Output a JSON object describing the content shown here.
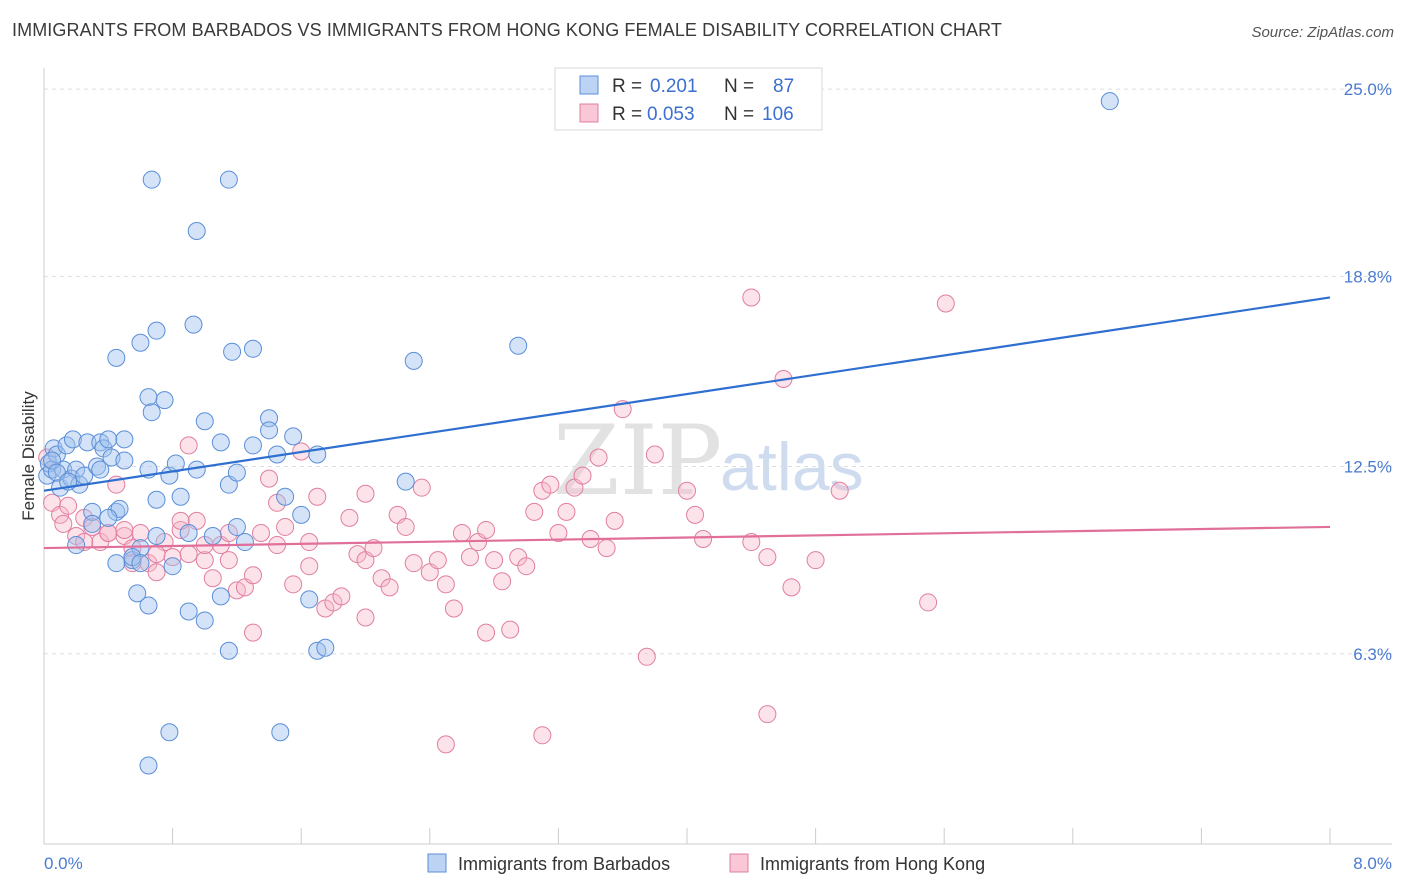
{
  "title": "IMMIGRANTS FROM BARBADOS VS IMMIGRANTS FROM HONG KONG FEMALE DISABILITY CORRELATION CHART",
  "source": "Source: ZipAtlas.com",
  "watermark": {
    "part1": "ZIP",
    "part2": "atlas"
  },
  "legend_top": {
    "rows": [
      {
        "r_label": "R =",
        "r_value": "0.201",
        "n_label": "N =",
        "n_value": "87",
        "color": "#a9c6f0",
        "edge": "#5b8fd8"
      },
      {
        "r_label": "R =",
        "r_value": "0.053",
        "n_label": "N =",
        "n_value": "106",
        "color": "#f7b6c8",
        "edge": "#e07fa0"
      }
    ]
  },
  "legend_bottom": [
    {
      "label": "Immigrants from Barbados",
      "color": "#a9c6f0"
    },
    {
      "label": "Immigrants from Hong Kong",
      "color": "#f7b6c8"
    }
  ],
  "chart_data": {
    "type": "scatter",
    "title": "IMMIGRANTS FROM BARBADOS VS IMMIGRANTS FROM HONG KONG FEMALE DISABILITY CORRELATION CHART",
    "xlabel": "",
    "ylabel": "Female Disability",
    "xlim": [
      0,
      8
    ],
    "ylim": [
      0,
      25.5
    ],
    "x_tick_labels": [
      "0.0%",
      "8.0%"
    ],
    "y_tick_labels": [
      "25.0%",
      "18.8%",
      "12.5%",
      "6.3%"
    ],
    "y_ticks": [
      25.0,
      18.8,
      12.5,
      6.3
    ],
    "grid": true,
    "colors": {
      "barbados": "#5b8fd8",
      "barbados_fill": "rgba(160,192,238,0.45)",
      "hongkong": "#e07fa0",
      "hongkong_fill": "rgba(247,182,200,0.40)",
      "trend_blue": "#2f6fd0",
      "trend_pink": "#e0709a"
    },
    "series": [
      {
        "name": "Immigrants from Barbados",
        "trend": [
          [
            0,
            11.7
          ],
          [
            8,
            18.1
          ]
        ],
        "points": [
          [
            0.02,
            12.2
          ],
          [
            0.03,
            12.6
          ],
          [
            0.05,
            12.4
          ],
          [
            0.06,
            13.1
          ],
          [
            0.08,
            12.9
          ],
          [
            0.1,
            11.8
          ],
          [
            0.12,
            12.4
          ],
          [
            0.14,
            13.2
          ],
          [
            0.17,
            12.1
          ],
          [
            0.18,
            13.4
          ],
          [
            0.2,
            12.4
          ],
          [
            0.22,
            11.9
          ],
          [
            0.25,
            12.2
          ],
          [
            0.27,
            13.3
          ],
          [
            0.3,
            11.0
          ],
          [
            0.33,
            12.5
          ],
          [
            0.35,
            13.3
          ],
          [
            0.37,
            13.1
          ],
          [
            0.4,
            13.4
          ],
          [
            0.42,
            12.8
          ],
          [
            0.45,
            11.0
          ],
          [
            0.47,
            11.1
          ],
          [
            0.5,
            12.7
          ],
          [
            0.55,
            9.4
          ],
          [
            0.58,
            8.3
          ],
          [
            0.6,
            9.8
          ],
          [
            0.65,
            12.4
          ],
          [
            0.7,
            11.4
          ],
          [
            0.75,
            14.7
          ],
          [
            0.78,
            12.2
          ],
          [
            0.82,
            12.6
          ],
          [
            0.85,
            11.5
          ],
          [
            0.9,
            10.3
          ],
          [
            0.95,
            12.4
          ],
          [
            1.0,
            14.0
          ],
          [
            1.05,
            10.2
          ],
          [
            1.1,
            13.3
          ],
          [
            1.15,
            11.9
          ],
          [
            1.2,
            10.5
          ],
          [
            1.25,
            10.0
          ],
          [
            1.3,
            16.4
          ],
          [
            1.4,
            14.1
          ],
          [
            1.45,
            12.9
          ],
          [
            1.5,
            11.5
          ],
          [
            1.55,
            13.5
          ],
          [
            1.6,
            10.9
          ],
          [
            1.65,
            8.1
          ],
          [
            1.7,
            12.9
          ],
          [
            0.05,
            12.7
          ],
          [
            0.08,
            12.3
          ],
          [
            0.15,
            12.0
          ],
          [
            0.2,
            9.9
          ],
          [
            0.3,
            10.6
          ],
          [
            0.35,
            12.4
          ],
          [
            0.4,
            10.8
          ],
          [
            0.45,
            9.3
          ],
          [
            0.5,
            13.4
          ],
          [
            0.55,
            9.5
          ],
          [
            0.6,
            9.3
          ],
          [
            0.65,
            7.9
          ],
          [
            0.7,
            10.2
          ],
          [
            0.8,
            9.2
          ],
          [
            0.9,
            7.7
          ],
          [
            1.0,
            7.4
          ],
          [
            1.1,
            8.2
          ],
          [
            1.15,
            6.4
          ],
          [
            1.2,
            12.3
          ],
          [
            1.3,
            13.2
          ],
          [
            1.4,
            13.7
          ],
          [
            1.7,
            6.4
          ],
          [
            1.75,
            6.5
          ],
          [
            2.25,
            12.0
          ],
          [
            2.95,
            16.5
          ],
          [
            0.45,
            16.1
          ],
          [
            0.6,
            16.6
          ],
          [
            0.7,
            17.0
          ],
          [
            0.93,
            17.2
          ],
          [
            1.17,
            16.3
          ],
          [
            2.3,
            16.0
          ],
          [
            0.65,
            14.8
          ],
          [
            0.67,
            14.3
          ],
          [
            0.95,
            20.3
          ],
          [
            0.67,
            22.0
          ],
          [
            1.15,
            22.0
          ],
          [
            0.78,
            3.7
          ],
          [
            1.47,
            3.7
          ],
          [
            0.65,
            2.6
          ],
          [
            6.63,
            24.6
          ]
        ]
      },
      {
        "name": "Immigrants from Hong Kong",
        "trend": [
          [
            0,
            9.8
          ],
          [
            8,
            10.5
          ]
        ],
        "points": [
          [
            0.02,
            12.8
          ],
          [
            0.05,
            11.3
          ],
          [
            0.1,
            10.9
          ],
          [
            0.12,
            10.6
          ],
          [
            0.15,
            11.2
          ],
          [
            0.2,
            10.2
          ],
          [
            0.25,
            10.8
          ],
          [
            0.3,
            10.5
          ],
          [
            0.35,
            10.0
          ],
          [
            0.4,
            10.3
          ],
          [
            0.45,
            11.9
          ],
          [
            0.5,
            10.2
          ],
          [
            0.55,
            9.8
          ],
          [
            0.6,
            10.3
          ],
          [
            0.65,
            9.3
          ],
          [
            0.7,
            9.0
          ],
          [
            0.75,
            10.0
          ],
          [
            0.8,
            9.5
          ],
          [
            0.85,
            10.4
          ],
          [
            0.9,
            13.2
          ],
          [
            0.95,
            10.7
          ],
          [
            1.0,
            9.4
          ],
          [
            1.05,
            8.8
          ],
          [
            1.1,
            9.9
          ],
          [
            1.15,
            9.4
          ],
          [
            1.2,
            8.4
          ],
          [
            1.25,
            8.5
          ],
          [
            1.3,
            7.0
          ],
          [
            1.35,
            10.3
          ],
          [
            1.4,
            12.1
          ],
          [
            1.45,
            11.3
          ],
          [
            1.5,
            10.5
          ],
          [
            1.55,
            8.6
          ],
          [
            1.6,
            13.0
          ],
          [
            1.65,
            9.2
          ],
          [
            1.7,
            11.5
          ],
          [
            1.75,
            7.8
          ],
          [
            1.8,
            8.0
          ],
          [
            1.85,
            8.2
          ],
          [
            1.9,
            10.8
          ],
          [
            1.95,
            9.6
          ],
          [
            2.0,
            9.4
          ],
          [
            2.05,
            9.8
          ],
          [
            2.1,
            8.8
          ],
          [
            2.15,
            8.5
          ],
          [
            2.2,
            10.9
          ],
          [
            2.25,
            10.5
          ],
          [
            2.3,
            9.3
          ],
          [
            2.35,
            11.8
          ],
          [
            2.4,
            9.0
          ],
          [
            2.45,
            9.4
          ],
          [
            2.5,
            8.6
          ],
          [
            2.55,
            7.8
          ],
          [
            2.6,
            10.3
          ],
          [
            2.65,
            9.5
          ],
          [
            2.7,
            10.0
          ],
          [
            2.75,
            7.0
          ],
          [
            2.8,
            9.4
          ],
          [
            2.85,
            8.7
          ],
          [
            2.9,
            7.1
          ],
          [
            2.95,
            9.5
          ],
          [
            3.0,
            9.2
          ],
          [
            3.05,
            11.0
          ],
          [
            3.1,
            11.7
          ],
          [
            3.15,
            11.9
          ],
          [
            3.2,
            10.3
          ],
          [
            3.25,
            11.0
          ],
          [
            3.3,
            11.8
          ],
          [
            3.35,
            12.2
          ],
          [
            3.4,
            10.1
          ],
          [
            3.45,
            12.8
          ],
          [
            3.5,
            9.8
          ],
          [
            3.55,
            10.7
          ],
          [
            3.6,
            14.4
          ],
          [
            3.8,
            12.9
          ],
          [
            4.0,
            11.7
          ],
          [
            4.05,
            10.9
          ],
          [
            4.1,
            10.1
          ],
          [
            4.4,
            10.0
          ],
          [
            4.5,
            9.5
          ],
          [
            4.6,
            15.4
          ],
          [
            4.65,
            8.5
          ],
          [
            4.8,
            9.4
          ],
          [
            4.95,
            11.7
          ],
          [
            5.5,
            8.0
          ],
          [
            5.61,
            17.9
          ],
          [
            4.5,
            4.3
          ],
          [
            0.25,
            10.0
          ],
          [
            0.4,
            10.3
          ],
          [
            0.55,
            9.3
          ],
          [
            0.7,
            9.6
          ],
          [
            0.85,
            10.7
          ],
          [
            1.0,
            9.9
          ],
          [
            1.15,
            10.3
          ],
          [
            0.5,
            10.4
          ],
          [
            0.9,
            9.6
          ],
          [
            1.3,
            8.9
          ],
          [
            1.45,
            9.9
          ],
          [
            1.65,
            10.0
          ],
          [
            2.0,
            7.5
          ],
          [
            2.5,
            3.3
          ],
          [
            3.1,
            3.6
          ],
          [
            3.75,
            6.2
          ],
          [
            4.4,
            18.1
          ],
          [
            2.0,
            11.6
          ],
          [
            2.75,
            10.4
          ]
        ]
      }
    ]
  }
}
